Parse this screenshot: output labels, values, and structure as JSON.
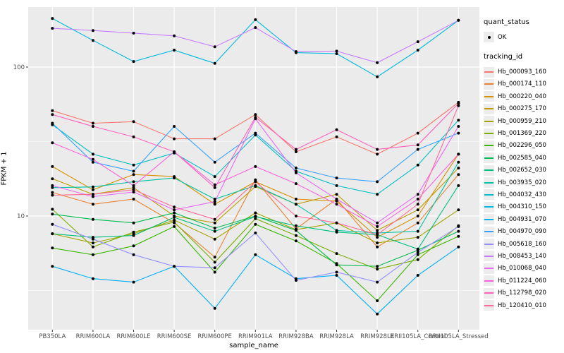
{
  "ui": {
    "quant_status_title": "quant_status",
    "quant_status_ok_label": "OK",
    "tracking_id_title": "tracking_id",
    "x_axis_title": "sample_name",
    "y_axis_title": "FPKM + 1",
    "panel_bg_color": "#EBEBEB",
    "gridline_color": "#FFFFFF",
    "tick_label_color": "#4D4D4D",
    "point_color": "#000000"
  },
  "chart_data": {
    "type": "line",
    "title": "",
    "xlabel": "sample_name",
    "ylabel": "FPKM + 1",
    "y_scale": "log10",
    "ylim": [
      1.7,
      253
    ],
    "y_major_ticks": [
      {
        "value": 100,
        "label": "100"
      },
      {
        "value": 10,
        "label": "10"
      }
    ],
    "y_minor_ticks": [
      31.62,
      3.162
    ],
    "grid": true,
    "legend_position": "right",
    "point_shape": "filled-circle",
    "categories": [
      "PB350LA",
      "RRIM600LA",
      "RRIM600LE",
      "RRIM600SE",
      "RRIM600PE",
      "RRIM901LA",
      "RRIM928BA",
      "RRIM928LA",
      "RRIM928LE",
      "RRII105LA_Control",
      "RRII105LA_Stressed"
    ],
    "quant_status": "OK",
    "series": [
      {
        "name": "Hb_000093_160",
        "color": "#F8766D",
        "values": [
          51,
          42,
          43,
          33,
          33,
          48,
          27,
          34,
          26,
          36,
          58
        ]
      },
      {
        "name": "Hb_000174_110",
        "color": "#EA8331",
        "values": [
          14.4,
          12,
          13,
          9,
          5.3,
          17.5,
          8.2,
          13,
          6.2,
          9,
          19
        ]
      },
      {
        "name": "Hb_000220_040",
        "color": "#D89000",
        "values": [
          21.5,
          15,
          19,
          18.4,
          12,
          17,
          13,
          12.6,
          7.2,
          10,
          26
        ]
      },
      {
        "name": "Hb_000275_170",
        "color": "#C09B00",
        "values": [
          17.8,
          14,
          15.5,
          10,
          9,
          15.8,
          12,
          14,
          8,
          11,
          21
        ]
      },
      {
        "name": "Hb_000959_210",
        "color": "#A3A500",
        "values": [
          7.6,
          6.6,
          7.6,
          9.4,
          7,
          10.5,
          8.1,
          9,
          6.6,
          7.2,
          11
        ]
      },
      {
        "name": "Hb_001369_220",
        "color": "#7CAE00",
        "values": [
          11.1,
          6.2,
          7.8,
          9.1,
          4.9,
          9.6,
          7.4,
          5.6,
          4.4,
          5.1,
          8.6
        ]
      },
      {
        "name": "Hb_002296_050",
        "color": "#39B600",
        "values": [
          6.1,
          5.5,
          6.3,
          8.5,
          4.2,
          8.8,
          6.8,
          4.8,
          2.7,
          5.5,
          7.3
        ]
      },
      {
        "name": "Hb_002585_040",
        "color": "#00BB4E",
        "values": [
          10.3,
          9.5,
          9,
          10.5,
          8.3,
          10,
          8,
          4.7,
          4.6,
          5.9,
          7.9
        ]
      },
      {
        "name": "Hb_002652_030",
        "color": "#00BF7D",
        "values": [
          7.6,
          7.2,
          7.4,
          9.8,
          7.9,
          9.9,
          8.6,
          7.8,
          7.5,
          6,
          16
        ]
      },
      {
        "name": "Hb_003935_020",
        "color": "#00C1A3",
        "values": [
          15.5,
          15.7,
          17,
          18,
          13,
          16,
          12,
          8,
          7.7,
          7.9,
          23
        ]
      },
      {
        "name": "Hb_004032_430",
        "color": "#00BFC4",
        "values": [
          41,
          26,
          22,
          26.5,
          18.4,
          35,
          20,
          16,
          14,
          22,
          44
        ]
      },
      {
        "name": "Hb_004310_150",
        "color": "#00BAE0",
        "values": [
          212,
          151,
          109,
          130,
          106,
          208,
          125,
          123,
          86,
          130,
          206
        ]
      },
      {
        "name": "Hb_004931_070",
        "color": "#00B0F6",
        "values": [
          4.6,
          3.8,
          3.6,
          4.6,
          2.4,
          5.5,
          3.8,
          4,
          2.2,
          4,
          6.2
        ]
      },
      {
        "name": "Hb_004970_090",
        "color": "#35A2FF",
        "values": [
          42,
          23,
          20,
          40,
          23,
          36,
          21,
          18,
          17,
          28,
          36
        ]
      },
      {
        "name": "Hb_005618_160",
        "color": "#9590FF",
        "values": [
          8.8,
          7,
          5.5,
          4.6,
          4.5,
          7.7,
          3.7,
          4.2,
          3.6,
          5.7,
          8.5
        ]
      },
      {
        "name": "Hb_008453_140",
        "color": "#C77CFF",
        "values": [
          182,
          176,
          169,
          162,
          137,
          184,
          127,
          128,
          107,
          148,
          206
        ]
      },
      {
        "name": "Hb_010068_040",
        "color": "#E76BF3",
        "values": [
          16,
          13.5,
          14.5,
          11,
          12.5,
          45,
          19.5,
          13,
          9,
          14,
          40
        ]
      },
      {
        "name": "Hb_011224_060",
        "color": "#FA62DB",
        "values": [
          31,
          24,
          16,
          27,
          16.2,
          21.5,
          16.5,
          12,
          8.5,
          13,
          26
        ]
      },
      {
        "name": "Hb_112798_020",
        "color": "#FF62BC",
        "values": [
          48,
          40,
          34,
          27,
          15.5,
          46,
          28,
          38,
          28,
          30,
          57
        ]
      },
      {
        "name": "Hb_120410_010",
        "color": "#FF6A98",
        "values": [
          13.8,
          14,
          15,
          11.5,
          9.5,
          17,
          10,
          9,
          7.5,
          12,
          55
        ]
      }
    ]
  }
}
